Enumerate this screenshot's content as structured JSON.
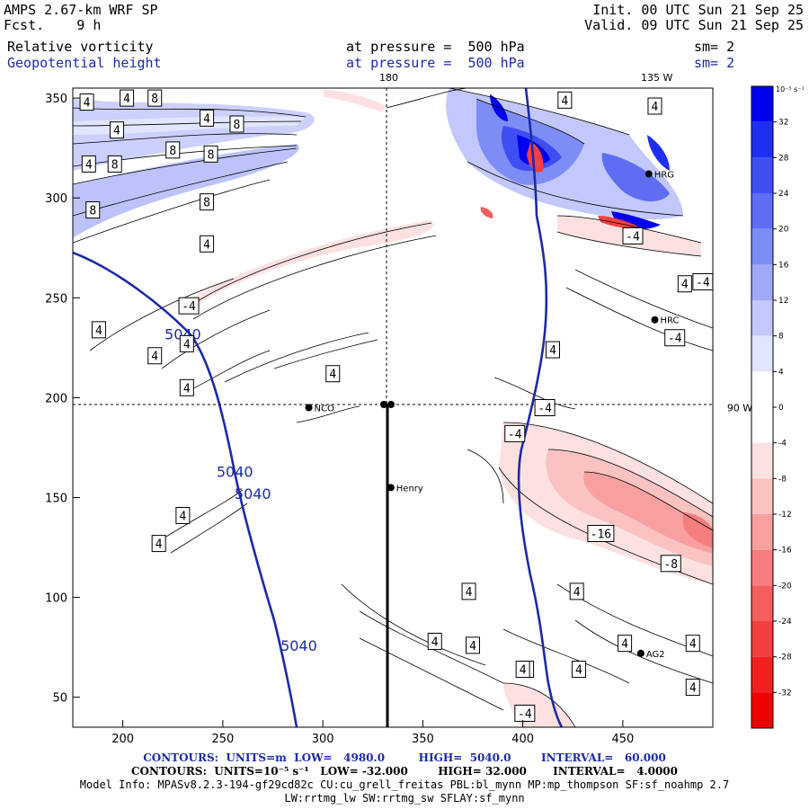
{
  "header": {
    "model": "AMPS 2.67-km WRF SP",
    "fcst_label": "Fcst.",
    "fcst_value": "9 h",
    "init": "Init. 00 UTC Sun 21 Sep 25",
    "valid": "Valid. 09 UTC Sun 21 Sep 25",
    "field1_name": "Relative vorticity",
    "field1_level": "at pressure =  500 hPa",
    "field1_sm": "sm= 2",
    "field2_name": "Geopotential height",
    "field2_level": "at pressure =  500 hPa",
    "field2_sm": "sm= 2"
  },
  "map": {
    "x_ticks": [
      200,
      250,
      300,
      350,
      400,
      450
    ],
    "y_ticks": [
      50,
      100,
      150,
      200,
      250,
      300,
      350
    ],
    "x_range": [
      175,
      495
    ],
    "y_range": [
      35,
      355
    ],
    "top_labels": [
      {
        "text": "180",
        "x": 333
      },
      {
        "text": "135 W",
        "x": 467
      }
    ],
    "right_label": {
      "text": "90 W",
      "y": 195
    },
    "crosshair": {
      "x": 333,
      "y": 195
    },
    "stations": [
      {
        "name": "NCO",
        "x": 293,
        "y": 195
      },
      {
        "name": "Henry",
        "x": 334,
        "y": 155
      },
      {
        "name": "HRC",
        "x": 466,
        "y": 239
      },
      {
        "name": "AG2",
        "x": 459,
        "y": 72
      },
      {
        "name": "HRG",
        "x": 463,
        "y": 312
      }
    ],
    "height_labels": [
      {
        "text": "5040",
        "x": 230,
        "y": 232
      },
      {
        "text": "5040",
        "x": 256,
        "y": 163
      },
      {
        "text": "5040",
        "x": 265,
        "y": 152
      },
      {
        "text": "5040",
        "x": 288,
        "y": 76
      }
    ],
    "vort_labels": [
      {
        "text": "4",
        "x": 182,
        "y": 348
      },
      {
        "text": "4",
        "x": 202,
        "y": 350
      },
      {
        "text": "8",
        "x": 216,
        "y": 350
      },
      {
        "text": "4",
        "x": 242,
        "y": 340
      },
      {
        "text": "8",
        "x": 257,
        "y": 337
      },
      {
        "text": "4",
        "x": 197,
        "y": 334
      },
      {
        "text": "4",
        "x": 183,
        "y": 317
      },
      {
        "text": "8",
        "x": 196,
        "y": 317
      },
      {
        "text": "8",
        "x": 225,
        "y": 324
      },
      {
        "text": "8",
        "x": 244,
        "y": 322
      },
      {
        "text": "8",
        "x": 242,
        "y": 298
      },
      {
        "text": "8",
        "x": 185,
        "y": 294
      },
      {
        "text": "4",
        "x": 242,
        "y": 277
      },
      {
        "text": "-4",
        "x": 233,
        "y": 246
      },
      {
        "text": "4",
        "x": 188,
        "y": 234
      },
      {
        "text": "4",
        "x": 216,
        "y": 221
      },
      {
        "text": "4",
        "x": 232,
        "y": 227
      },
      {
        "text": "4",
        "x": 232,
        "y": 205
      },
      {
        "text": "4",
        "x": 305,
        "y": 212
      },
      {
        "text": "4",
        "x": 415,
        "y": 224
      },
      {
        "text": "-4",
        "x": 411,
        "y": 195
      },
      {
        "text": "-4",
        "x": 396,
        "y": 182
      },
      {
        "text": "4",
        "x": 421,
        "y": 349
      },
      {
        "text": "4",
        "x": 466,
        "y": 346
      },
      {
        "text": "-4",
        "x": 455,
        "y": 281
      },
      {
        "text": "4",
        "x": 481,
        "y": 257
      },
      {
        "text": "-4",
        "x": 490,
        "y": 258
      },
      {
        "text": "-4",
        "x": 476,
        "y": 230
      },
      {
        "text": "-16",
        "x": 439,
        "y": 132
      },
      {
        "text": "-8",
        "x": 474,
        "y": 117
      },
      {
        "text": "4",
        "x": 230,
        "y": 141
      },
      {
        "text": "4",
        "x": 218,
        "y": 127
      },
      {
        "text": "4",
        "x": 373,
        "y": 103
      },
      {
        "text": "4",
        "x": 427,
        "y": 103
      },
      {
        "text": "4",
        "x": 356,
        "y": 78
      },
      {
        "text": "4",
        "x": 375,
        "y": 76
      },
      {
        "text": "4",
        "x": 402,
        "y": 64
      },
      {
        "text": "4",
        "x": 400,
        "y": 64
      },
      {
        "text": "4",
        "x": 428,
        "y": 64
      },
      {
        "text": "4",
        "x": 451,
        "y": 77
      },
      {
        "text": "4",
        "x": 485,
        "y": 77
      },
      {
        "text": "4",
        "x": 485,
        "y": 55
      },
      {
        "text": "-4",
        "x": 401,
        "y": 42
      }
    ]
  },
  "colorbar": {
    "unit": "10⁻⁵ s⁻¹",
    "labels": [
      "32",
      "28",
      "24",
      "20",
      "16",
      "12",
      "8",
      "4",
      "0",
      "-4",
      "-8",
      "-12",
      "-16",
      "-20",
      "-24",
      "-28",
      "-32"
    ],
    "colors": [
      "#0000f0",
      "#1f2ff2",
      "#3f4ef3",
      "#5e6df4",
      "#7e8cf6",
      "#a0a9f8",
      "#c2c8fb",
      "#e1e5fd",
      "#ffffff",
      "#ffffff",
      "#fde1e1",
      "#fbc2c2",
      "#f8a0a0",
      "#f67e7e",
      "#f45e5e",
      "#f33f3f",
      "#f21f1f",
      "#f00000"
    ]
  },
  "footer": {
    "line1": "CONTOURS:  UNITS=m  LOW=   4980.0         HIGH=  5040.0        INTERVAL=   60.000",
    "line2": "CONTOURS:  UNITS=10⁻⁵ s⁻¹   LOW= -32.000        HIGH= 32.000       INTERVAL=   4.0000",
    "line3": "Model Info: MPASv8.2.3-194-gf29cd82c CU:cu_grell_freitas PBL:bl_mynn MP:mp_thompson SF:sf_noahmp 2.7",
    "line4": "LW:rrtmg_lw SW:rrtmg_sw SFLAY:sf_mynn"
  },
  "colors": {
    "height_contour": "#1c2aa8",
    "vort_pos": "#0000f0",
    "vort_neg": "#f00000"
  }
}
